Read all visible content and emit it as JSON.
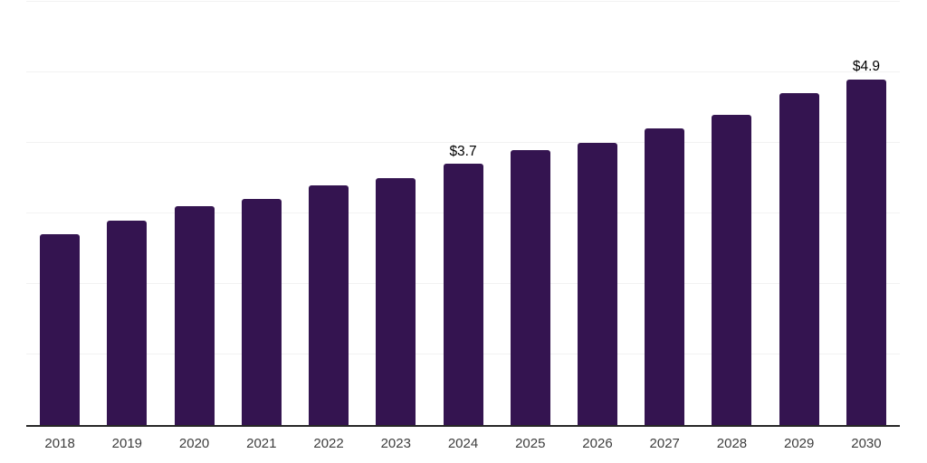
{
  "chart_data": {
    "type": "bar",
    "title": "",
    "categories": [
      "2018",
      "2019",
      "2020",
      "2021",
      "2022",
      "2023",
      "2024",
      "2025",
      "2026",
      "2027",
      "2028",
      "2029",
      "2030"
    ],
    "values": [
      2.7,
      2.9,
      3.1,
      3.2,
      3.4,
      3.5,
      3.7,
      3.9,
      4.0,
      4.2,
      4.4,
      4.7,
      4.9
    ],
    "data_labels": [
      null,
      null,
      null,
      null,
      null,
      null,
      "$3.7",
      null,
      null,
      null,
      null,
      null,
      "$4.9"
    ],
    "xlabel": "",
    "ylabel": "",
    "ylim": [
      0,
      6
    ],
    "gridline_step": 1,
    "grid": true,
    "legend_position": "none",
    "colors": {
      "bar": "#341450",
      "gridline": "#f2f2f2",
      "axis": "#262626",
      "tick_label": "#3d3d3d",
      "data_label": "#000000",
      "background": "#ffffff"
    }
  }
}
